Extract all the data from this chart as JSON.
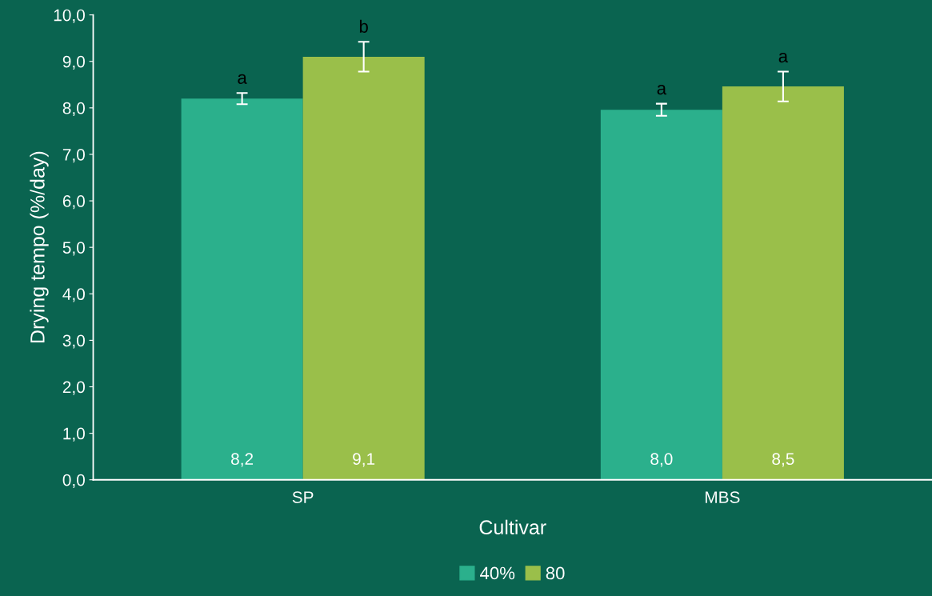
{
  "chart_data": {
    "type": "bar",
    "xlabel": "Cultivar",
    "ylabel": "Drying tempo (%/day)",
    "categories": [
      "SP",
      "MBS"
    ],
    "series": [
      {
        "name": "40%",
        "color": "#2bb08c",
        "values": [
          8.2,
          7.96
        ],
        "errors": [
          0.12,
          0.13
        ],
        "value_labels": [
          "8,2",
          "8,0"
        ]
      },
      {
        "name": "80",
        "color": "#9abf4a",
        "values": [
          9.1,
          8.46
        ],
        "errors": [
          0.32,
          0.32
        ],
        "value_labels": [
          "9,1",
          "8,5"
        ]
      }
    ],
    "ylim": [
      0,
      10
    ],
    "yticks": [
      {
        "value": 0,
        "label": "0,0"
      },
      {
        "value": 1,
        "label": "1,0"
      },
      {
        "value": 2,
        "label": "2,0"
      },
      {
        "value": 3,
        "label": "3,0"
      },
      {
        "value": 4,
        "label": "4,0"
      },
      {
        "value": 5,
        "label": "5,0"
      },
      {
        "value": 6,
        "label": "6,0"
      },
      {
        "value": 7,
        "label": "7,0"
      },
      {
        "value": 8,
        "label": "8,0"
      },
      {
        "value": 9,
        "label": "9,0"
      },
      {
        "value": 10,
        "label": "10,0"
      }
    ],
    "annotations": [
      "a",
      "b",
      "a",
      "a"
    ],
    "grid": false,
    "legend": "bottom"
  }
}
